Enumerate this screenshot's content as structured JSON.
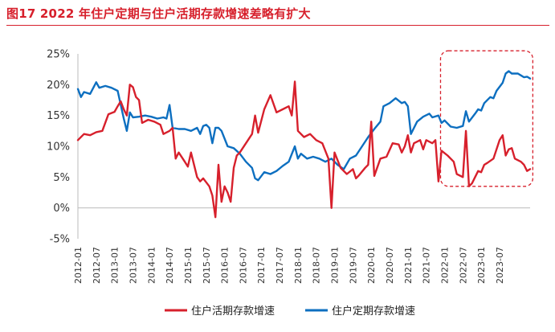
{
  "header": {
    "figure_label": "图17",
    "title": "2022 年住户定期与住户活期存款增速差略有扩大"
  },
  "colors": {
    "accent": "#d7202c",
    "demand": "#d7202c",
    "time": "#0d6fc0",
    "box": "#d7202c"
  },
  "chart_data": {
    "type": "line",
    "title": "2022 年住户定期与住户活期存款增速差略有扩大",
    "xlabel": "",
    "ylabel": "",
    "ylim": [
      -5,
      25
    ],
    "yticks": [
      -5,
      0,
      5,
      10,
      15,
      20,
      25
    ],
    "ytick_labels": [
      "-5%",
      "0%",
      "5%",
      "10%",
      "15%",
      "20%",
      "25%"
    ],
    "x_range": [
      "2012-01",
      "2023-10"
    ],
    "x_tick_labels": [
      "2012-01",
      "2012-07",
      "2013-01",
      "2013-07",
      "2014-01",
      "2014-07",
      "2015-01",
      "2015-07",
      "2016-01",
      "2016-07",
      "2017-01",
      "2017-07",
      "2018-01",
      "2018-07",
      "2019-01",
      "2019-07",
      "2020-01",
      "2020-07",
      "2021-01",
      "2021-07",
      "2022-01",
      "2022-07",
      "2023-01",
      "2023-07"
    ],
    "grid": false,
    "legend_position": "bottom",
    "annotation": {
      "type": "dashed-rounded-box",
      "x_from": "2022-01",
      "x_to": "2023-10",
      "y_from": 3.5,
      "y_to": 25.5
    },
    "series": [
      {
        "name": "住户活期存款增速",
        "color": "#d7202c",
        "points": [
          [
            "2012-01",
            11
          ],
          [
            "2012-03",
            12
          ],
          [
            "2012-05",
            11.8
          ],
          [
            "2012-07",
            12.3
          ],
          [
            "2012-09",
            12.5
          ],
          [
            "2012-11",
            15.2
          ],
          [
            "2013-01",
            15.6
          ],
          [
            "2013-02",
            16.5
          ],
          [
            "2013-03",
            17.3
          ],
          [
            "2013-04",
            16
          ],
          [
            "2013-05",
            15
          ],
          [
            "2013-06",
            20
          ],
          [
            "2013-07",
            19.6
          ],
          [
            "2013-08",
            18
          ],
          [
            "2013-09",
            17.5
          ],
          [
            "2013-10",
            13.8
          ],
          [
            "2013-12",
            14.3
          ],
          [
            "2014-02",
            14
          ],
          [
            "2014-04",
            13.5
          ],
          [
            "2014-05",
            12
          ],
          [
            "2014-07",
            12.5
          ],
          [
            "2014-08",
            13
          ],
          [
            "2014-09",
            8
          ],
          [
            "2014-10",
            9
          ],
          [
            "2014-12",
            7.5
          ],
          [
            "2015-01",
            6.7
          ],
          [
            "2015-02",
            9
          ],
          [
            "2015-04",
            5
          ],
          [
            "2015-05",
            4.3
          ],
          [
            "2015-06",
            4.8
          ],
          [
            "2015-08",
            3.5
          ],
          [
            "2015-09",
            2
          ],
          [
            "2015-10",
            -1.5
          ],
          [
            "2015-11",
            7
          ],
          [
            "2015-12",
            1
          ],
          [
            "2016-01",
            3.5
          ],
          [
            "2016-02",
            2.5
          ],
          [
            "2016-03",
            1
          ],
          [
            "2016-04",
            6.5
          ],
          [
            "2016-05",
            8.5
          ],
          [
            "2016-06",
            9
          ],
          [
            "2016-08",
            10.5
          ],
          [
            "2016-10",
            12
          ],
          [
            "2016-11",
            15
          ],
          [
            "2016-12",
            12.2
          ],
          [
            "2017-02",
            16
          ],
          [
            "2017-04",
            18.3
          ],
          [
            "2017-06",
            15.5
          ],
          [
            "2017-08",
            16
          ],
          [
            "2017-10",
            16.5
          ],
          [
            "2017-11",
            15
          ],
          [
            "2017-12",
            20.5
          ],
          [
            "2018-01",
            12.5
          ],
          [
            "2018-03",
            11.5
          ],
          [
            "2018-05",
            12
          ],
          [
            "2018-07",
            11
          ],
          [
            "2018-09",
            10.5
          ],
          [
            "2018-11",
            8
          ],
          [
            "2018-12",
            0
          ],
          [
            "2019-01",
            9
          ],
          [
            "2019-03",
            6.5
          ],
          [
            "2019-05",
            5.5
          ],
          [
            "2019-07",
            6.3
          ],
          [
            "2019-08",
            4.8
          ],
          [
            "2019-09",
            5.3
          ],
          [
            "2019-11",
            6.5
          ],
          [
            "2019-12",
            7
          ],
          [
            "2020-01",
            14
          ],
          [
            "2020-02",
            5.2
          ],
          [
            "2020-04",
            8
          ],
          [
            "2020-06",
            8.3
          ],
          [
            "2020-08",
            10.5
          ],
          [
            "2020-10",
            10.3
          ],
          [
            "2020-11",
            9
          ],
          [
            "2020-12",
            10
          ],
          [
            "2021-01",
            11.8
          ],
          [
            "2021-02",
            9
          ],
          [
            "2021-03",
            10.5
          ],
          [
            "2021-05",
            11
          ],
          [
            "2021-06",
            9.5
          ],
          [
            "2021-07",
            11
          ],
          [
            "2021-09",
            10.5
          ],
          [
            "2021-10",
            11
          ],
          [
            "2021-11",
            4.3
          ],
          [
            "2021-12",
            9.3
          ],
          [
            "2022-02",
            8.5
          ],
          [
            "2022-04",
            7.5
          ],
          [
            "2022-05",
            5.5
          ],
          [
            "2022-07",
            5
          ],
          [
            "2022-08",
            12.5
          ],
          [
            "2022-09",
            3.5
          ],
          [
            "2022-10",
            4
          ],
          [
            "2022-11",
            5
          ],
          [
            "2022-12",
            6
          ],
          [
            "2023-01",
            5.8
          ],
          [
            "2023-02",
            7
          ],
          [
            "2023-03",
            7.3
          ],
          [
            "2023-05",
            8
          ],
          [
            "2023-07",
            11
          ],
          [
            "2023-08",
            11.8
          ],
          [
            "2023-09",
            8.5
          ],
          [
            "2023-10",
            9.5
          ],
          [
            "2023-11",
            9.7
          ],
          [
            "2023-12",
            8
          ],
          [
            "2024-02",
            7.5
          ],
          [
            "2024-03",
            7
          ],
          [
            "2024-04",
            6
          ],
          [
            "2024-05",
            6.3
          ]
        ]
      },
      {
        "name": "住户定期存款增速",
        "color": "#0d6fc0",
        "points": [
          [
            "2012-01",
            19.3
          ],
          [
            "2012-02",
            18
          ],
          [
            "2012-03",
            18.8
          ],
          [
            "2012-05",
            18.5
          ],
          [
            "2012-07",
            20.4
          ],
          [
            "2012-08",
            19.5
          ],
          [
            "2012-10",
            19.8
          ],
          [
            "2012-12",
            19.5
          ],
          [
            "2013-02",
            19
          ],
          [
            "2013-04",
            14.5
          ],
          [
            "2013-05",
            12.5
          ],
          [
            "2013-06",
            15.5
          ],
          [
            "2013-07",
            14.7
          ],
          [
            "2013-09",
            14.8
          ],
          [
            "2013-11",
            15
          ],
          [
            "2014-01",
            14.8
          ],
          [
            "2014-03",
            14.5
          ],
          [
            "2014-05",
            14.7
          ],
          [
            "2014-06",
            14.5
          ],
          [
            "2014-07",
            16.7
          ],
          [
            "2014-08",
            13
          ],
          [
            "2014-10",
            12.8
          ],
          [
            "2014-12",
            12.8
          ],
          [
            "2015-02",
            12.5
          ],
          [
            "2015-04",
            13
          ],
          [
            "2015-05",
            12
          ],
          [
            "2015-06",
            13.3
          ],
          [
            "2015-07",
            13.5
          ],
          [
            "2015-08",
            13
          ],
          [
            "2015-09",
            10.5
          ],
          [
            "2015-10",
            13
          ],
          [
            "2015-11",
            13
          ],
          [
            "2015-12",
            12.5
          ],
          [
            "2016-02",
            10
          ],
          [
            "2016-04",
            9.7
          ],
          [
            "2016-06",
            8.8
          ],
          [
            "2016-08",
            7.5
          ],
          [
            "2016-10",
            6.5
          ],
          [
            "2016-11",
            4.8
          ],
          [
            "2016-12",
            4.5
          ],
          [
            "2017-02",
            5.8
          ],
          [
            "2017-04",
            5.5
          ],
          [
            "2017-06",
            6
          ],
          [
            "2017-08",
            6.8
          ],
          [
            "2017-10",
            7.5
          ],
          [
            "2017-12",
            10
          ],
          [
            "2018-01",
            8
          ],
          [
            "2018-02",
            8.8
          ],
          [
            "2018-04",
            8
          ],
          [
            "2018-06",
            8.3
          ],
          [
            "2018-08",
            8
          ],
          [
            "2018-10",
            7.5
          ],
          [
            "2018-12",
            8
          ],
          [
            "2019-02",
            7
          ],
          [
            "2019-04",
            6.3
          ],
          [
            "2019-06",
            8
          ],
          [
            "2019-08",
            8.5
          ],
          [
            "2019-10",
            10
          ],
          [
            "2019-12",
            11.5
          ],
          [
            "2020-02",
            12.8
          ],
          [
            "2020-04",
            14
          ],
          [
            "2020-05",
            16.5
          ],
          [
            "2020-07",
            17
          ],
          [
            "2020-09",
            17.8
          ],
          [
            "2020-11",
            17
          ],
          [
            "2020-12",
            17.2
          ],
          [
            "2021-01",
            16.5
          ],
          [
            "2021-02",
            12
          ],
          [
            "2021-04",
            14
          ],
          [
            "2021-06",
            14.8
          ],
          [
            "2021-08",
            15.3
          ],
          [
            "2021-09",
            14.7
          ],
          [
            "2021-11",
            15
          ],
          [
            "2021-12",
            13.8
          ],
          [
            "2022-01",
            14.2
          ],
          [
            "2022-03",
            13.2
          ],
          [
            "2022-05",
            13
          ],
          [
            "2022-07",
            13.3
          ],
          [
            "2022-08",
            15.7
          ],
          [
            "2022-09",
            14
          ],
          [
            "2022-11",
            15.3
          ],
          [
            "2022-12",
            16
          ],
          [
            "2023-01",
            15.8
          ],
          [
            "2023-02",
            17
          ],
          [
            "2023-04",
            18
          ],
          [
            "2023-05",
            17.8
          ],
          [
            "2023-06",
            19
          ],
          [
            "2023-08",
            20.3
          ],
          [
            "2023-09",
            21.8
          ],
          [
            "2023-10",
            22.2
          ],
          [
            "2023-11",
            21.8
          ],
          [
            "2024-01",
            21.8
          ],
          [
            "2024-02",
            21.5
          ],
          [
            "2024-03",
            21.2
          ],
          [
            "2024-04",
            21.3
          ],
          [
            "2024-05",
            21
          ]
        ]
      }
    ]
  }
}
